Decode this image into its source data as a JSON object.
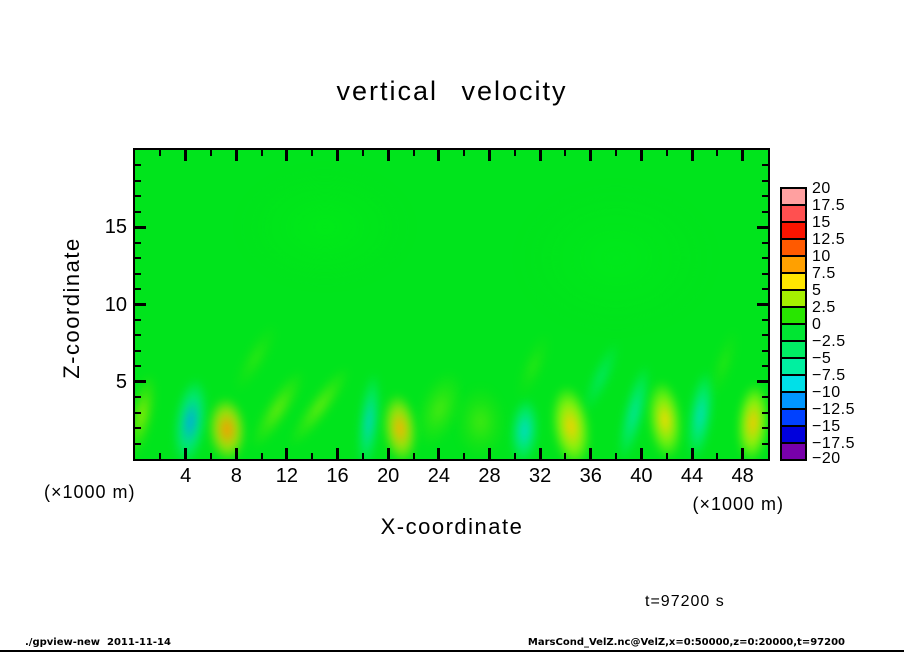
{
  "window": {
    "title": "vertical velocity"
  },
  "annotations": {
    "time_label": "t=97200 s"
  },
  "footer": {
    "left": "./gpview-new  2011-11-14",
    "right": "MarsCond_VelZ.nc@VelZ,x=0:50000,z=0:20000,t=97200"
  },
  "chart_data": {
    "type": "heatmap",
    "title": "vertical velocity",
    "xlabel": "X-coordinate",
    "ylabel": "Z-coordinate",
    "x_units": "(×1000 m)",
    "y_units": "(×1000 m)",
    "time_label": "t=97200 s",
    "xlim": [
      0,
      50
    ],
    "ylim": [
      0,
      20
    ],
    "x_ticks_major": [
      4,
      8,
      12,
      16,
      20,
      24,
      28,
      32,
      36,
      40,
      44,
      48
    ],
    "x_tick_minor_step": 2,
    "y_ticks_major": [
      5,
      10,
      15
    ],
    "y_tick_minor_step": 1,
    "grid": false,
    "background_field_value": 0,
    "background_color": "#00E41C",
    "colorbar": {
      "position": "right",
      "levels": [
        20,
        17.5,
        15,
        12.5,
        10,
        7.5,
        5,
        2.5,
        0,
        -2.5,
        -5,
        -7.5,
        -10,
        -12.5,
        -15,
        -17.5,
        -20
      ],
      "tick_labels": [
        "20",
        "17.5",
        "15",
        "12.5",
        "10",
        "7.5",
        "5",
        "2.5",
        "0",
        "−2.5",
        "−5",
        "−7.5",
        "−10",
        "−12.5",
        "−15",
        "−17.5",
        "−20"
      ],
      "colors": [
        "#FFA0A0",
        "#FF5050",
        "#FA1400",
        "#FF5A00",
        "#FFA000",
        "#FFE600",
        "#A5F000",
        "#28E600",
        "#00E632",
        "#00EE64",
        "#00F0A0",
        "#00E0E8",
        "#0096FF",
        "#0041FF",
        "#0000DC",
        "#7800AA"
      ]
    },
    "features": [
      {
        "name": "left-edge-updraft",
        "x": 0.5,
        "z": 2.8,
        "rx": 1.0,
        "rz": 2.8,
        "rot": 12,
        "value": 4,
        "core": "rgba(180,240,0,0.8)",
        "mid": "rgba(110,230,0,0.45)"
      },
      {
        "name": "downdraft-a",
        "x": 4.4,
        "z": 2.4,
        "rx": 1.3,
        "rz": 2.9,
        "rot": 8,
        "value": -10,
        "core": "rgba(0,160,250,0.9)",
        "mid": "rgba(0,235,190,0.55)"
      },
      {
        "name": "updraft-a",
        "x": 7.3,
        "z": 1.9,
        "rx": 1.5,
        "rz": 2.1,
        "rot": -4,
        "value": 10,
        "core": "rgba(255,150,0,1)",
        "mid": "rgba(255,225,0,0.6)"
      },
      {
        "name": "streak-a1",
        "x": 11.3,
        "z": 3.2,
        "rx": 1.0,
        "rz": 3.0,
        "rot": 32,
        "value": 4,
        "core": "rgba(190,242,0,0.55)",
        "mid": "rgba(120,235,0,0.3)"
      },
      {
        "name": "streak-a2",
        "x": 14.6,
        "z": 3.4,
        "rx": 0.9,
        "rz": 3.2,
        "rot": 36,
        "value": 3.5,
        "core": "rgba(205,245,0,0.5)",
        "mid": "rgba(130,238,0,0.28)"
      },
      {
        "name": "downdraft-b",
        "x": 18.5,
        "z": 2.4,
        "rx": 0.85,
        "rz": 3.3,
        "rot": 6,
        "value": -7.5,
        "core": "rgba(0,205,255,0.75)",
        "mid": "rgba(0,238,175,0.45)"
      },
      {
        "name": "updraft-b",
        "x": 20.9,
        "z": 2.0,
        "rx": 1.35,
        "rz": 2.3,
        "rot": -6,
        "value": 9,
        "core": "rgba(255,175,0,1)",
        "mid": "rgba(255,232,0,0.55)"
      },
      {
        "name": "streak-b2",
        "x": 24.0,
        "z": 3.2,
        "rx": 1.6,
        "rz": 2.6,
        "rot": 20,
        "value": 3,
        "core": "rgba(180,240,0,0.4)",
        "mid": "rgba(120,235,0,0.22)"
      },
      {
        "name": "faint-updraft-c",
        "x": 27.3,
        "z": 2.4,
        "rx": 2.0,
        "rz": 2.4,
        "rot": 0,
        "value": 3,
        "core": "rgba(170,240,0,0.38)",
        "mid": "rgba(110,232,0,0.2)"
      },
      {
        "name": "downdraft-c",
        "x": 30.8,
        "z": 1.8,
        "rx": 1.15,
        "rz": 2.2,
        "rot": 4,
        "value": -7.5,
        "core": "rgba(0,215,255,0.8)",
        "mid": "rgba(0,240,185,0.5)"
      },
      {
        "name": "updraft-d",
        "x": 34.4,
        "z": 2.1,
        "rx": 1.5,
        "rz": 2.7,
        "rot": -8,
        "value": 8,
        "core": "rgba(255,205,0,1)",
        "mid": "rgba(242,255,0,0.55)"
      },
      {
        "name": "streak-d",
        "x": 36.8,
        "z": 5.3,
        "rx": 0.8,
        "rz": 2.6,
        "rot": 24,
        "value": -3,
        "core": "rgba(0,238,200,0.4)",
        "mid": "rgba(0,240,160,0.22)"
      },
      {
        "name": "downdraft-e",
        "x": 39.4,
        "z": 3.0,
        "rx": 0.85,
        "rz": 3.3,
        "rot": 14,
        "value": -6,
        "core": "rgba(0,228,215,0.7)",
        "mid": "rgba(0,242,175,0.4)"
      },
      {
        "name": "updraft-e",
        "x": 41.9,
        "z": 2.5,
        "rx": 1.35,
        "rz": 2.6,
        "rot": -6,
        "value": 8,
        "core": "rgba(255,215,0,1)",
        "mid": "rgba(235,255,0,0.5)"
      },
      {
        "name": "downdraft-f",
        "x": 44.7,
        "z": 2.8,
        "rx": 1.0,
        "rz": 3.0,
        "rot": 8,
        "value": -6,
        "core": "rgba(0,222,235,0.8)",
        "mid": "rgba(0,242,185,0.45)"
      },
      {
        "name": "updraft-f",
        "x": 48.8,
        "z": 2.3,
        "rx": 1.25,
        "rz": 2.6,
        "rot": 4,
        "value": 8,
        "core": "rgba(255,195,0,1)",
        "mid": "rgba(248,255,0,0.55)"
      },
      {
        "name": "wisp-1",
        "x": 9.5,
        "z": 6.5,
        "rx": 0.9,
        "rz": 2.6,
        "rot": 30,
        "value": 2,
        "core": "rgba(150,238,0,0.3)",
        "mid": "rgba(100,230,0,0.15)"
      },
      {
        "name": "wisp-2",
        "x": 31.5,
        "z": 6.0,
        "rx": 0.9,
        "rz": 2.4,
        "rot": 22,
        "value": 2,
        "core": "rgba(160,240,0,0.25)",
        "mid": "rgba(100,230,0,0.12)"
      },
      {
        "name": "wisp-3",
        "x": 46.5,
        "z": 6.2,
        "rx": 0.8,
        "rz": 2.4,
        "rot": 18,
        "value": 2,
        "core": "rgba(150,238,0,0.25)",
        "mid": "rgba(100,230,0,0.12)"
      },
      {
        "name": "bg-patch-1",
        "x": 15,
        "z": 15,
        "rx": 7,
        "rz": 4,
        "rot": 0,
        "value": 0.5,
        "core": "rgba(0,242,20,0.45)",
        "mid": "rgba(0,238,20,0.2)"
      },
      {
        "name": "bg-patch-2",
        "x": 38,
        "z": 13,
        "rx": 8,
        "rz": 5,
        "rot": 0,
        "value": 0.5,
        "core": "rgba(0,242,25,0.38)",
        "mid": "rgba(0,238,24,0.18)"
      }
    ]
  }
}
